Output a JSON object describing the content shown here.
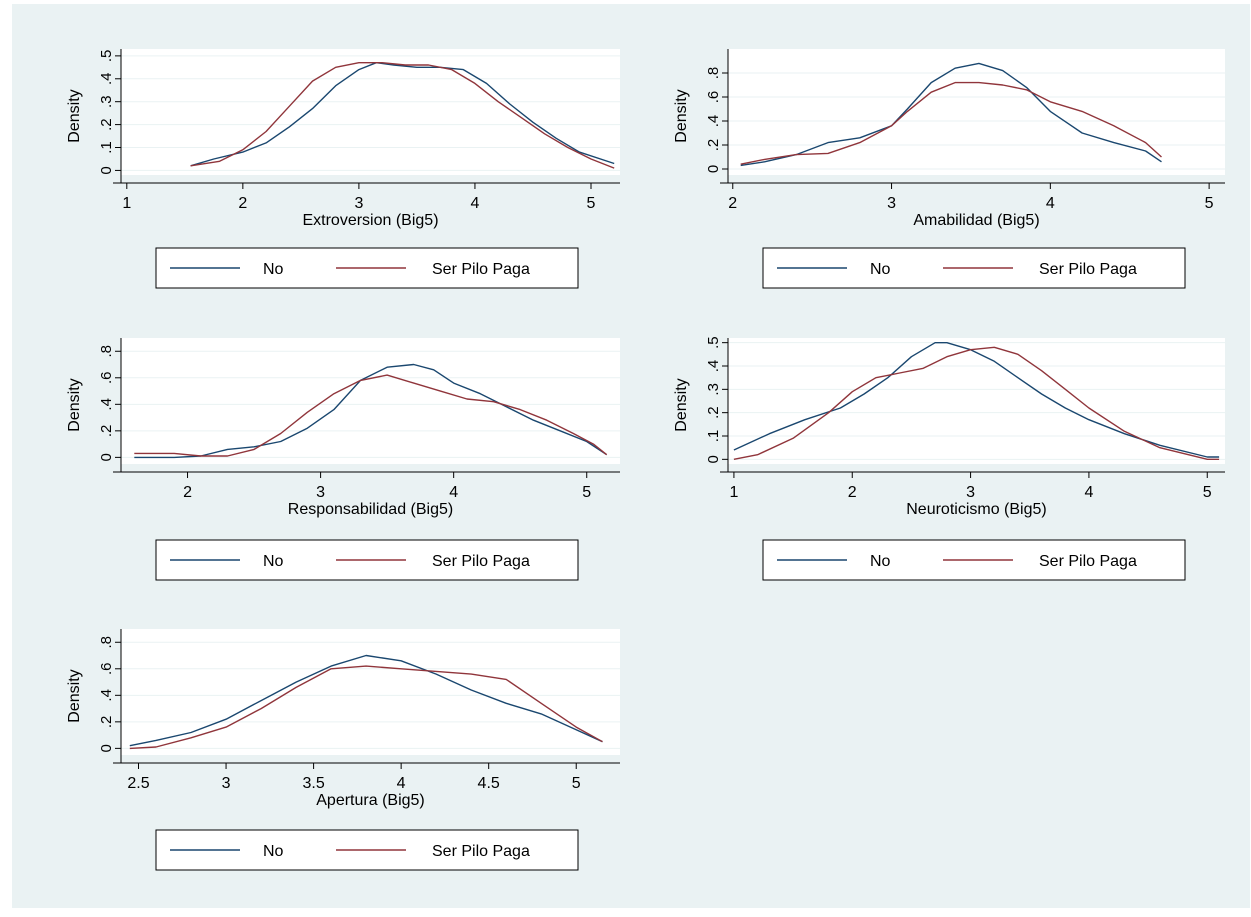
{
  "colors": {
    "background": "#eaf2f3",
    "plot_bg": "#ffffff",
    "grid": "#eaf2f3",
    "series_no": "#1a476f",
    "series_spp": "#90353b",
    "axis": "#000000"
  },
  "chart_data": [
    {
      "type": "line",
      "ylabel": "Density",
      "xlabel": "Extroversion (Big5)",
      "xlim": [
        0.95,
        5.25
      ],
      "ylim": [
        -0.02,
        0.53
      ],
      "xticks": [
        1,
        2,
        3,
        4,
        5
      ],
      "yticks": [
        0,
        0.1,
        0.2,
        0.3,
        0.4,
        0.5
      ],
      "ytick_labels": [
        "0",
        ".1",
        ".2",
        ".3",
        ".4",
        ".5"
      ],
      "legend": [
        "No",
        "Ser Pilo Paga"
      ],
      "legend_position": "bottom",
      "series": [
        {
          "name": "No",
          "x": [
            1.55,
            1.75,
            2.0,
            2.2,
            2.4,
            2.6,
            2.8,
            3.0,
            3.15,
            3.3,
            3.5,
            3.7,
            3.9,
            4.1,
            4.3,
            4.5,
            4.7,
            4.9,
            5.2
          ],
          "y": [
            0.02,
            0.05,
            0.08,
            0.12,
            0.19,
            0.27,
            0.37,
            0.44,
            0.47,
            0.46,
            0.45,
            0.45,
            0.44,
            0.38,
            0.29,
            0.21,
            0.14,
            0.08,
            0.03
          ]
        },
        {
          "name": "Ser Pilo Paga",
          "x": [
            1.55,
            1.8,
            2.0,
            2.2,
            2.4,
            2.6,
            2.8,
            3.0,
            3.2,
            3.4,
            3.6,
            3.8,
            4.0,
            4.2,
            4.4,
            4.6,
            4.8,
            5.0,
            5.2
          ],
          "y": [
            0.02,
            0.04,
            0.09,
            0.17,
            0.28,
            0.39,
            0.45,
            0.47,
            0.47,
            0.46,
            0.46,
            0.44,
            0.38,
            0.3,
            0.23,
            0.16,
            0.1,
            0.05,
            0.01
          ]
        }
      ]
    },
    {
      "type": "line",
      "ylabel": "Density",
      "xlabel": "Amabilidad (Big5)",
      "xlim": [
        1.97,
        5.1
      ],
      "ylim": [
        -0.05,
        1.0
      ],
      "xticks": [
        2,
        3,
        4,
        5
      ],
      "yticks": [
        0,
        0.2,
        0.4,
        0.6,
        0.8
      ],
      "ytick_labels": [
        "0",
        ".2",
        ".4",
        ".6",
        ".8"
      ],
      "legend": [
        "No",
        "Ser Pilo Paga"
      ],
      "legend_position": "bottom",
      "series": [
        {
          "name": "No",
          "x": [
            2.05,
            2.2,
            2.4,
            2.6,
            2.8,
            3.0,
            3.1,
            3.25,
            3.4,
            3.55,
            3.7,
            3.85,
            4.0,
            4.2,
            4.4,
            4.6,
            4.7
          ],
          "y": [
            0.03,
            0.06,
            0.12,
            0.22,
            0.26,
            0.36,
            0.5,
            0.72,
            0.84,
            0.88,
            0.82,
            0.68,
            0.48,
            0.3,
            0.22,
            0.15,
            0.06
          ]
        },
        {
          "name": "Ser Pilo Paga",
          "x": [
            2.05,
            2.2,
            2.4,
            2.6,
            2.8,
            3.0,
            3.1,
            3.25,
            3.4,
            3.55,
            3.7,
            3.85,
            4.0,
            4.2,
            4.4,
            4.6,
            4.7
          ],
          "y": [
            0.04,
            0.08,
            0.12,
            0.13,
            0.22,
            0.36,
            0.48,
            0.64,
            0.72,
            0.72,
            0.7,
            0.66,
            0.56,
            0.48,
            0.36,
            0.22,
            0.1
          ]
        }
      ]
    },
    {
      "type": "line",
      "ylabel": "Density",
      "xlabel": "Responsabilidad (Big5)",
      "xlim": [
        1.5,
        5.25
      ],
      "ylim": [
        -0.05,
        0.9
      ],
      "xticks": [
        2,
        3,
        4,
        5
      ],
      "yticks": [
        0,
        0.2,
        0.4,
        0.6,
        0.8
      ],
      "ytick_labels": [
        "0",
        ".2",
        ".4",
        ".6",
        ".8"
      ],
      "legend": [
        "No",
        "Ser Pilo Paga"
      ],
      "legend_position": "bottom",
      "series": [
        {
          "name": "No",
          "x": [
            1.6,
            1.9,
            2.1,
            2.3,
            2.5,
            2.7,
            2.9,
            3.1,
            3.3,
            3.5,
            3.7,
            3.85,
            4.0,
            4.2,
            4.4,
            4.6,
            4.8,
            5.0,
            5.15
          ],
          "y": [
            0.0,
            0.0,
            0.01,
            0.06,
            0.08,
            0.12,
            0.22,
            0.36,
            0.58,
            0.68,
            0.7,
            0.66,
            0.56,
            0.48,
            0.38,
            0.28,
            0.2,
            0.12,
            0.02
          ]
        },
        {
          "name": "Ser Pilo Paga",
          "x": [
            1.6,
            1.9,
            2.1,
            2.3,
            2.5,
            2.7,
            2.9,
            3.1,
            3.3,
            3.5,
            3.7,
            3.9,
            4.1,
            4.3,
            4.5,
            4.7,
            4.9,
            5.05,
            5.15
          ],
          "y": [
            0.03,
            0.03,
            0.01,
            0.01,
            0.06,
            0.18,
            0.34,
            0.48,
            0.58,
            0.62,
            0.56,
            0.5,
            0.44,
            0.42,
            0.36,
            0.28,
            0.18,
            0.1,
            0.02
          ]
        }
      ]
    },
    {
      "type": "line",
      "ylabel": "Density",
      "xlabel": "Neuroticismo (Big5)",
      "xlim": [
        0.95,
        5.15
      ],
      "ylim": [
        -0.02,
        0.52
      ],
      "xticks": [
        1,
        2,
        3,
        4,
        5
      ],
      "yticks": [
        0,
        0.1,
        0.2,
        0.3,
        0.4,
        0.5
      ],
      "ytick_labels": [
        "0",
        ".1",
        ".2",
        ".3",
        ".4",
        ".5"
      ],
      "legend": [
        "No",
        "Ser Pilo Paga"
      ],
      "legend_position": "bottom",
      "series": [
        {
          "name": "No",
          "x": [
            1.0,
            1.3,
            1.6,
            1.9,
            2.1,
            2.3,
            2.5,
            2.7,
            2.8,
            3.0,
            3.2,
            3.4,
            3.6,
            3.8,
            4.0,
            4.3,
            4.6,
            5.0,
            5.1
          ],
          "y": [
            0.04,
            0.11,
            0.17,
            0.22,
            0.28,
            0.35,
            0.44,
            0.5,
            0.5,
            0.47,
            0.42,
            0.35,
            0.28,
            0.22,
            0.17,
            0.11,
            0.06,
            0.01,
            0.01
          ]
        },
        {
          "name": "Ser Pilo Paga",
          "x": [
            1.0,
            1.2,
            1.5,
            1.8,
            2.0,
            2.2,
            2.4,
            2.6,
            2.8,
            3.0,
            3.2,
            3.4,
            3.6,
            3.8,
            4.0,
            4.3,
            4.6,
            5.0,
            5.1
          ],
          "y": [
            0.0,
            0.02,
            0.09,
            0.2,
            0.29,
            0.35,
            0.37,
            0.39,
            0.44,
            0.47,
            0.48,
            0.45,
            0.38,
            0.3,
            0.22,
            0.12,
            0.05,
            0.0,
            0.0
          ]
        }
      ]
    },
    {
      "type": "line",
      "ylabel": "Density",
      "xlabel": "Apertura (Big5)",
      "xlim": [
        2.4,
        5.25
      ],
      "ylim": [
        -0.05,
        0.9
      ],
      "xticks": [
        2.5,
        3,
        3.5,
        4,
        4.5,
        5
      ],
      "yticks": [
        0,
        0.2,
        0.4,
        0.6,
        0.8
      ],
      "ytick_labels": [
        "0",
        ".2",
        ".4",
        ".6",
        ".8"
      ],
      "legend": [
        "No",
        "Ser Pilo Paga"
      ],
      "legend_position": "bottom",
      "series": [
        {
          "name": "No",
          "x": [
            2.45,
            2.6,
            2.8,
            3.0,
            3.2,
            3.4,
            3.6,
            3.8,
            4.0,
            4.2,
            4.4,
            4.6,
            4.8,
            5.0,
            5.15
          ],
          "y": [
            0.02,
            0.06,
            0.12,
            0.22,
            0.36,
            0.5,
            0.62,
            0.7,
            0.66,
            0.56,
            0.44,
            0.34,
            0.26,
            0.14,
            0.05
          ]
        },
        {
          "name": "Ser Pilo Paga",
          "x": [
            2.45,
            2.6,
            2.8,
            3.0,
            3.2,
            3.4,
            3.6,
            3.8,
            4.0,
            4.2,
            4.4,
            4.6,
            4.8,
            5.0,
            5.15
          ],
          "y": [
            0.0,
            0.01,
            0.08,
            0.16,
            0.3,
            0.46,
            0.6,
            0.62,
            0.6,
            0.58,
            0.56,
            0.52,
            0.34,
            0.16,
            0.05
          ]
        }
      ]
    }
  ]
}
